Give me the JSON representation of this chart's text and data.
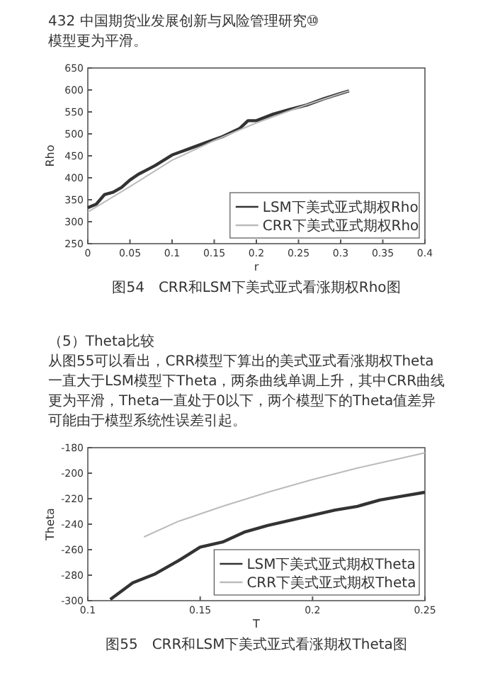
{
  "chart_data": [
    {
      "type": "line",
      "annotations": [
        "432 中国期货业发展创新与风险管理研究⑩",
        "模型更为平滑。",
        "图54　CRR和LSM下美式亚式看涨期权Rho图"
      ],
      "xlabel": "r",
      "ylabel": "Rho",
      "xlim": [
        0,
        0.4
      ],
      "xticks": [
        0,
        0.05,
        0.1,
        0.15,
        0.2,
        0.25,
        0.3,
        0.35,
        0.4
      ],
      "ylim": [
        250,
        650
      ],
      "yticks": [
        250,
        300,
        350,
        400,
        450,
        500,
        550,
        600,
        650
      ],
      "legend": "bottom right",
      "series": [
        {
          "name": "LSM下美式亚式期权Rho",
          "color": "#333333",
          "x": [
            0,
            0.01,
            0.02,
            0.03,
            0.04,
            0.05,
            0.06,
            0.07,
            0.08,
            0.1,
            0.12,
            0.14,
            0.16,
            0.18,
            0.19,
            0.2,
            0.22,
            0.24,
            0.26,
            0.28,
            0.3,
            0.31
          ],
          "values": [
            332,
            340,
            362,
            367,
            378,
            395,
            408,
            418,
            428,
            452,
            466,
            480,
            494,
            512,
            530,
            530,
            545,
            556,
            566,
            580,
            592,
            598
          ]
        },
        {
          "name": "CRR下美式亚式期权Rho",
          "color": "#bbbbbb",
          "x": [
            0,
            0.05,
            0.1,
            0.15,
            0.2,
            0.25,
            0.3,
            0.31
          ],
          "values": [
            322,
            380,
            440,
            485,
            525,
            560,
            592,
            598
          ]
        }
      ]
    },
    {
      "type": "line",
      "annotations": [
        "（5）Theta比较",
        "从图55可以看出，CRR模型下算出的美式亚式看涨期权Theta一直大于LSM模型下Theta，两条曲线单调上升，其中CRR曲线更为平滑，Theta一直处于0以下，两个模型下的Theta值差异可能由于模型系统性误差引起。",
        "图55　CRR和LSM下美式亚式看涨期权Theta图"
      ],
      "xlabel": "T",
      "ylabel": "Theta",
      "xlim": [
        0.1,
        0.25
      ],
      "xticks": [
        0.1,
        0.15,
        0.2,
        0.25
      ],
      "ylim": [
        -300,
        -180
      ],
      "yticks": [
        -300,
        -280,
        -260,
        -240,
        -220,
        -200,
        -180
      ],
      "legend": "bottom right",
      "series": [
        {
          "name": "LSM下美式亚式期权Theta",
          "color": "#333333",
          "x": [
            0.11,
            0.12,
            0.13,
            0.14,
            0.15,
            0.16,
            0.17,
            0.18,
            0.19,
            0.2,
            0.21,
            0.22,
            0.23,
            0.24,
            0.25
          ],
          "values": [
            -299,
            -286,
            -279,
            -269,
            -258,
            -254,
            -246,
            -241,
            -237,
            -233,
            -229,
            -226,
            -221,
            -218,
            -215
          ]
        },
        {
          "name": "CRR下美式亚式期权Theta",
          "color": "#bbbbbb",
          "x": [
            0.125,
            0.14,
            0.16,
            0.18,
            0.2,
            0.22,
            0.24,
            0.25
          ],
          "values": [
            -250,
            -238,
            -226,
            -215,
            -205,
            -196,
            -188,
            -184
          ]
        }
      ]
    }
  ]
}
